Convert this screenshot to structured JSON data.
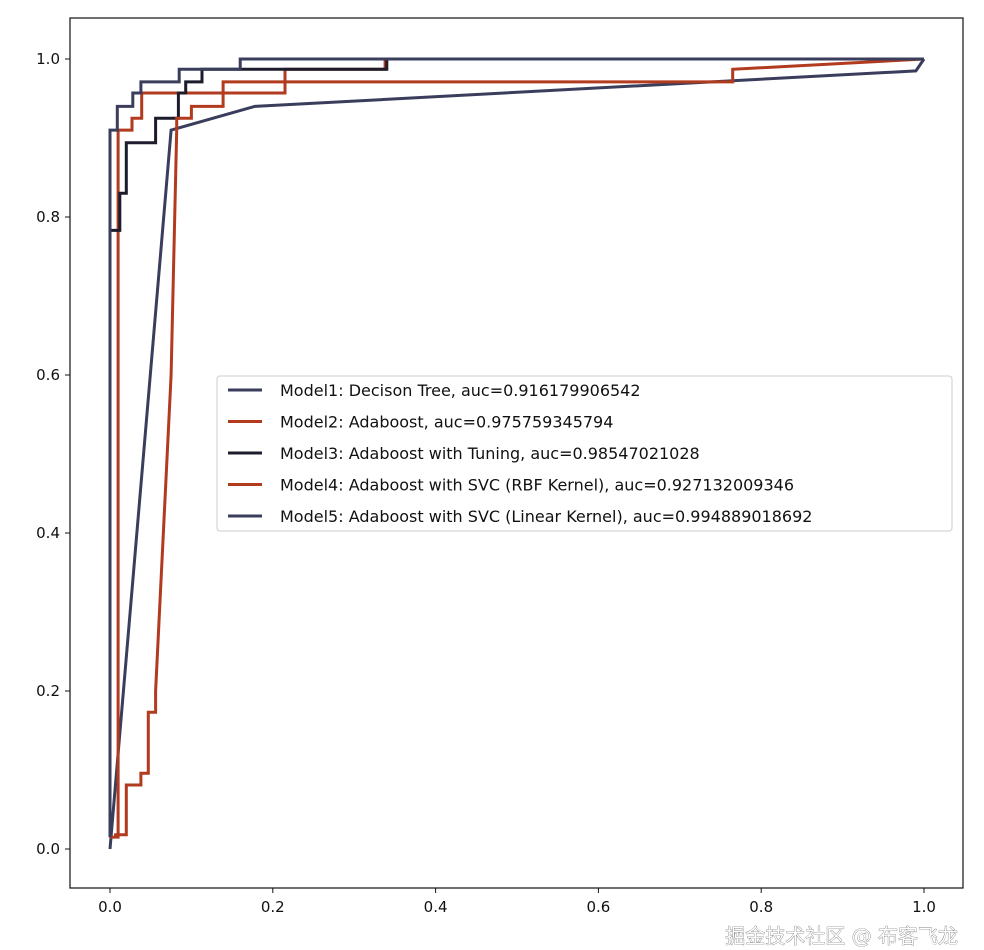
{
  "chart_data": {
    "type": "line",
    "title": "",
    "xlabel": "",
    "ylabel": "",
    "xlim": [
      -0.05,
      1.05
    ],
    "ylim": [
      -0.05,
      1.05
    ],
    "grid": false,
    "legend_position": "center-right",
    "xticks": [
      "0.0",
      "0.2",
      "0.4",
      "0.6",
      "0.8",
      "1.0"
    ],
    "yticks": [
      "0.0",
      "0.2",
      "0.4",
      "0.6",
      "0.8",
      "1.0"
    ],
    "series": [
      {
        "name": "Model1: Decison Tree, auc=0.916179906542",
        "color": "#3a3d5c",
        "x": [
          0.0,
          0.075,
          0.178,
          0.99,
          1.0
        ],
        "y": [
          0.0,
          0.91,
          0.94,
          0.985,
          1.0
        ]
      },
      {
        "name": "Model2: Adaboost, auc=0.975759345794",
        "color": "#b23a1e",
        "x": [
          0.0,
          0.01,
          0.01,
          0.027,
          0.027,
          0.039,
          0.039,
          0.215,
          0.215,
          0.338,
          0.338,
          1.0
        ],
        "y": [
          0.015,
          0.015,
          0.91,
          0.91,
          0.925,
          0.925,
          0.957,
          0.957,
          0.987,
          0.987,
          1.0,
          1.0
        ]
      },
      {
        "name": "Model3: Adaboost with Tuning, auc=0.98547021028",
        "color": "#1c1c2c",
        "x": [
          0.0,
          0.0,
          0.012,
          0.012,
          0.02,
          0.02,
          0.056,
          0.056,
          0.084,
          0.084,
          0.093,
          0.093,
          0.113,
          0.113,
          0.34,
          0.34,
          1.0
        ],
        "y": [
          0.015,
          0.783,
          0.783,
          0.83,
          0.83,
          0.894,
          0.894,
          0.925,
          0.925,
          0.957,
          0.957,
          0.971,
          0.971,
          0.987,
          0.987,
          1.0,
          1.0
        ]
      },
      {
        "name": "Model4: Adaboost with SVC (RBF Kernel), auc=0.927132009346",
        "color": "#b23a1e",
        "x": [
          0.005,
          0.02,
          0.02,
          0.038,
          0.038,
          0.047,
          0.047,
          0.056,
          0.056,
          0.075,
          0.082,
          0.082,
          0.1,
          0.1,
          0.139,
          0.139,
          0.765,
          0.765,
          1.0
        ],
        "y": [
          0.018,
          0.018,
          0.081,
          0.081,
          0.096,
          0.096,
          0.173,
          0.173,
          0.2,
          0.6,
          0.91,
          0.925,
          0.925,
          0.94,
          0.94,
          0.971,
          0.971,
          0.987,
          1.0
        ]
      },
      {
        "name": "Model5: Adaboost with SVC (Linear Kernel), auc=0.994889018692",
        "color": "#3a3d5c",
        "x": [
          0.0,
          0.0,
          0.009,
          0.009,
          0.028,
          0.028,
          0.038,
          0.038,
          0.085,
          0.085,
          0.16,
          0.16,
          1.0
        ],
        "y": [
          0.015,
          0.91,
          0.91,
          0.94,
          0.94,
          0.957,
          0.957,
          0.971,
          0.971,
          0.987,
          0.987,
          1.0,
          1.0
        ]
      }
    ]
  },
  "watermark": "掘金技术社区 @ 布客飞龙"
}
